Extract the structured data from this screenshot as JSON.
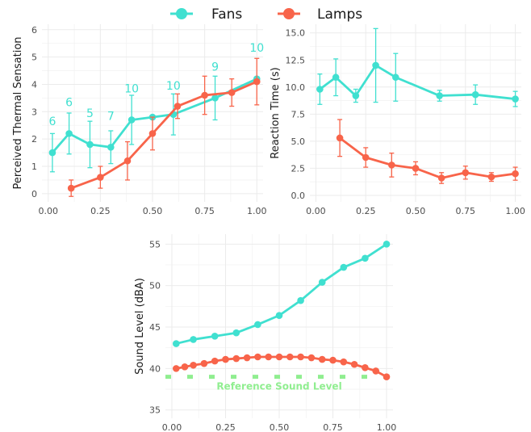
{
  "colors": {
    "fans": "#40E0D0",
    "lamps": "#F8644A",
    "reference": "#90EE90",
    "grid": "#ebebeb"
  },
  "legend": {
    "items": [
      "Fans",
      "Lamps"
    ]
  },
  "chart_data": [
    {
      "type": "line",
      "ylabel": "Perceived Thermal Sensation",
      "xlabel": "",
      "xlim": [
        -0.03,
        1.03
      ],
      "ylim": [
        -0.3,
        6.2
      ],
      "xticks": [
        "0.00",
        "0.25",
        "0.50",
        "0.75",
        "1.00"
      ],
      "yticks": [
        "0",
        "1",
        "2",
        "3",
        "4",
        "5",
        "6"
      ],
      "grid": true,
      "series": [
        {
          "name": "Fans",
          "x": [
            0.02,
            0.1,
            0.2,
            0.3,
            0.4,
            0.5,
            0.6,
            0.8,
            1.0
          ],
          "y": [
            1.5,
            2.2,
            1.8,
            1.7,
            2.7,
            2.8,
            2.9,
            3.5,
            4.2
          ],
          "err": [
            0.7,
            0.75,
            0.85,
            0.6,
            0.9,
            null,
            0.75,
            0.8,
            null
          ]
        },
        {
          "name": "Lamps",
          "x": [
            0.11,
            0.25,
            0.38,
            0.5,
            0.62,
            0.75,
            0.88,
            1.0
          ],
          "y": [
            0.2,
            0.6,
            1.2,
            2.2,
            3.2,
            3.6,
            3.7,
            4.1
          ],
          "err": [
            0.3,
            0.4,
            0.7,
            0.6,
            0.45,
            0.7,
            0.5,
            0.85
          ]
        }
      ],
      "annotations": [
        {
          "x": 0.02,
          "y": 2.65,
          "text": "6"
        },
        {
          "x": 0.1,
          "y": 3.35,
          "text": "6"
        },
        {
          "x": 0.2,
          "y": 2.95,
          "text": "5"
        },
        {
          "x": 0.3,
          "y": 2.85,
          "text": "7"
        },
        {
          "x": 0.4,
          "y": 3.85,
          "text": "10"
        },
        {
          "x": 0.6,
          "y": 3.95,
          "text": "10"
        },
        {
          "x": 0.8,
          "y": 4.65,
          "text": "9"
        },
        {
          "x": 1.0,
          "y": 5.35,
          "text": "10"
        }
      ]
    },
    {
      "type": "line",
      "ylabel": "Reaction Time (s)",
      "xlabel": "",
      "xlim": [
        -0.03,
        1.03
      ],
      "ylim": [
        -0.6,
        15.8
      ],
      "xticks": [
        "0.00",
        "0.25",
        "0.50",
        "0.75",
        "1.00"
      ],
      "yticks": [
        "0.0",
        "2.5",
        "5.0",
        "7.5",
        "10.0",
        "12.5",
        "15.0"
      ],
      "grid": true,
      "series": [
        {
          "name": "Fans",
          "x": [
            0.02,
            0.1,
            0.2,
            0.3,
            0.4,
            0.62,
            0.8,
            1.0
          ],
          "y": [
            9.8,
            10.9,
            9.2,
            12.0,
            10.9,
            9.2,
            9.3,
            8.9
          ],
          "err": [
            1.4,
            1.7,
            0.6,
            3.4,
            2.2,
            0.5,
            0.9,
            0.7
          ]
        },
        {
          "name": "Lamps",
          "x": [
            0.12,
            0.25,
            0.38,
            0.5,
            0.63,
            0.75,
            0.88,
            1.0
          ],
          "y": [
            5.3,
            3.5,
            2.8,
            2.5,
            1.6,
            2.1,
            1.7,
            2.0
          ],
          "err": [
            1.7,
            0.9,
            1.1,
            0.6,
            0.5,
            0.6,
            0.4,
            0.6
          ]
        }
      ]
    },
    {
      "type": "line",
      "ylabel": "Sound Level (dBA)",
      "xlabel": "",
      "xlim": [
        -0.03,
        1.03
      ],
      "ylim": [
        34.0,
        56.2
      ],
      "xticks": [
        "0.00",
        "0.25",
        "0.50",
        "0.75",
        "1.00"
      ],
      "yticks": [
        "35",
        "40",
        "45",
        "50",
        "55"
      ],
      "grid": true,
      "series": [
        {
          "name": "Fans",
          "x": [
            0.02,
            0.1,
            0.2,
            0.3,
            0.4,
            0.5,
            0.6,
            0.7,
            0.8,
            0.9,
            1.0
          ],
          "y": [
            43.0,
            43.5,
            43.9,
            44.3,
            45.3,
            46.4,
            48.2,
            50.4,
            52.2,
            53.3,
            55.0
          ],
          "err": []
        },
        {
          "name": "Lamps",
          "x": [
            0.02,
            0.06,
            0.1,
            0.15,
            0.2,
            0.25,
            0.3,
            0.35,
            0.4,
            0.45,
            0.5,
            0.55,
            0.6,
            0.65,
            0.7,
            0.75,
            0.8,
            0.85,
            0.9,
            0.95,
            1.0
          ],
          "y": [
            40.0,
            40.2,
            40.4,
            40.6,
            40.9,
            41.1,
            41.2,
            41.3,
            41.4,
            41.4,
            41.4,
            41.4,
            41.4,
            41.3,
            41.1,
            41.0,
            40.8,
            40.5,
            40.1,
            39.7,
            39.0
          ],
          "err": []
        }
      ],
      "reference_line": {
        "y": 39.0,
        "label": "Reference Sound Level"
      }
    }
  ]
}
